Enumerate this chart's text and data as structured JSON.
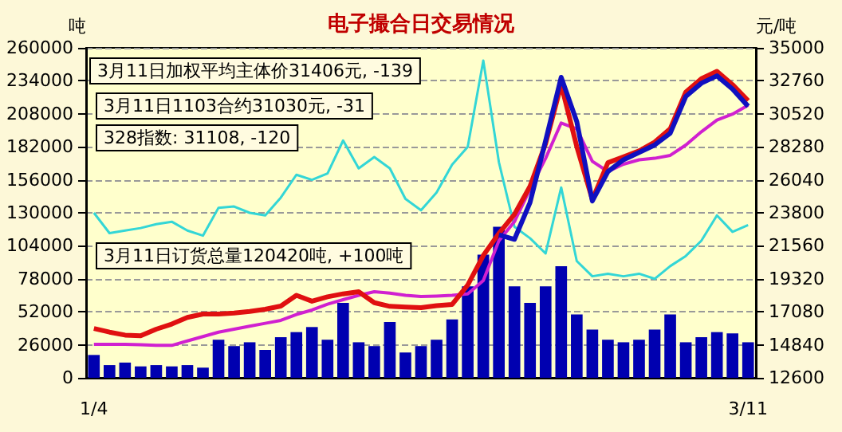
{
  "chart_data": {
    "type": "line",
    "title": "电子撮合日交易情况",
    "ylabel": "吨",
    "y2label": "元/吨",
    "annotations": [
      "3月11日加权平均主体价31406元, -139",
      "3月11日1103合约31030元, -31",
      "328指数: 31108, -120",
      "3月11日订货总量120420吨, +100吨"
    ],
    "categories": [
      "1/4",
      null,
      null,
      null,
      null,
      null,
      null,
      null,
      null,
      null,
      null,
      null,
      null,
      null,
      null,
      null,
      null,
      null,
      null,
      null,
      null,
      null,
      null,
      null,
      null,
      null,
      null,
      null,
      null,
      null,
      null,
      null,
      null,
      null,
      null,
      null,
      null,
      null,
      null,
      null,
      null,
      null,
      "3/11"
    ],
    "series": [
      {
        "type": "bar",
        "color": "#0000b0",
        "values": [
          18000,
          10000,
          12000,
          9000,
          10000,
          9000,
          10000,
          8000,
          30000,
          25000,
          28000,
          22000,
          32000,
          36000,
          40000,
          30000,
          59000,
          28000,
          25000,
          44000,
          20000,
          25000,
          30000,
          46000,
          72000,
          97000,
          119000,
          72000,
          59000,
          72000,
          88000,
          50000,
          38000,
          30000,
          28000,
          30000,
          38000,
          50000,
          28000,
          32000,
          36000,
          35000,
          28000
        ]
      },
      {
        "color": "#33d6d6",
        "values": [
          130000,
          114000,
          116000,
          118000,
          121000,
          123000,
          116000,
          112000,
          134000,
          135000,
          130000,
          128000,
          142000,
          160000,
          156000,
          161000,
          187000,
          165000,
          174000,
          165000,
          141000,
          132000,
          146000,
          168000,
          182000,
          250000,
          170000,
          119000,
          110000,
          98000,
          150000,
          92000,
          80000,
          82000,
          80000,
          82000,
          78000,
          88000,
          96000,
          108000,
          128000,
          115000,
          120420
        ]
      },
      {
        "axis": "y2",
        "color": "#d020d0",
        "values": [
          14870,
          14870,
          14870,
          14850,
          14800,
          14800,
          15100,
          15400,
          15700,
          15900,
          16100,
          16300,
          16500,
          16900,
          17200,
          17600,
          17900,
          18200,
          18440,
          18350,
          18200,
          18120,
          18150,
          18200,
          18300,
          19200,
          21900,
          23200,
          25400,
          27500,
          29900,
          29500,
          27300,
          26600,
          27100,
          27400,
          27500,
          27700,
          28400,
          29300,
          30100,
          30500,
          31108
        ]
      },
      {
        "axis": "y2",
        "color": "#e01010",
        "values": [
          15950,
          15700,
          15500,
          15450,
          15900,
          16250,
          16700,
          16930,
          16930,
          17000,
          17100,
          17250,
          17470,
          18200,
          17800,
          18100,
          18300,
          18440,
          17700,
          17450,
          17400,
          17360,
          17500,
          17580,
          18900,
          20900,
          22400,
          23700,
          25600,
          28500,
          32500,
          28300,
          24700,
          27200,
          27600,
          28000,
          28600,
          29500,
          32000,
          32900,
          33400,
          32500,
          31406
        ]
      },
      {
        "axis": "y2",
        "color": "#1010c0",
        "values": [
          null,
          null,
          null,
          null,
          null,
          null,
          null,
          null,
          null,
          null,
          null,
          null,
          null,
          null,
          null,
          null,
          null,
          null,
          null,
          null,
          null,
          null,
          null,
          null,
          null,
          null,
          22300,
          22000,
          24500,
          28700,
          33000,
          30000,
          24600,
          26600,
          27400,
          27900,
          28400,
          29200,
          31700,
          32600,
          33100,
          32200,
          31030
        ]
      }
    ],
    "ylim": [
      0,
      260000
    ],
    "yticks": [
      0,
      26000,
      52000,
      78000,
      104000,
      130000,
      156000,
      182000,
      208000,
      234000,
      260000
    ],
    "y2lim": [
      12600,
      35000
    ],
    "y2ticks": [
      12600,
      14840,
      17080,
      19320,
      21560,
      23800,
      26040,
      28280,
      30520,
      32760,
      35000
    ],
    "grid": "y"
  }
}
